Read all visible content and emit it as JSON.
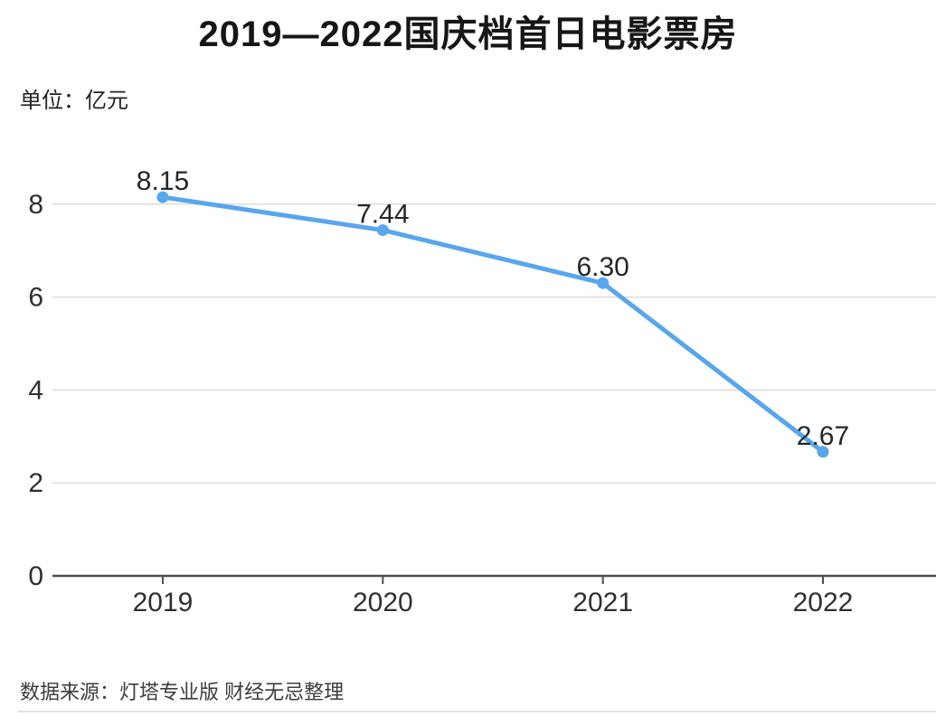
{
  "page": {
    "background": "#ffffff"
  },
  "chart_data": {
    "type": "line",
    "title": "2019—2022国庆档首日电影票房",
    "unit_label": "单位：亿元",
    "categories": [
      "2019",
      "2020",
      "2021",
      "2022"
    ],
    "values": [
      8.15,
      7.44,
      6.3,
      2.67
    ],
    "point_labels": [
      "8.15",
      "7.44",
      "6.30",
      "2.67"
    ],
    "xlabel": "",
    "ylabel": "亿元",
    "ylim": [
      0,
      8.6
    ],
    "yticks": [
      0,
      2,
      4,
      6,
      8
    ],
    "grid": true,
    "legend": false,
    "line_color": "#58A6EC",
    "marker_color": "#58A6EC",
    "marker": "circle"
  },
  "footer": {
    "source_text": "数据来源：灯塔专业版 财经无忌整理"
  },
  "colors": {
    "title": "#161616",
    "unit_label": "#222222",
    "axis_label": "#303030",
    "point_label": "#262626",
    "gridline": "#e3e3e3",
    "axis_line": "#4f4f4f",
    "footer_text": "#3c3c3c",
    "footer_divider": "#e2e2e2"
  }
}
